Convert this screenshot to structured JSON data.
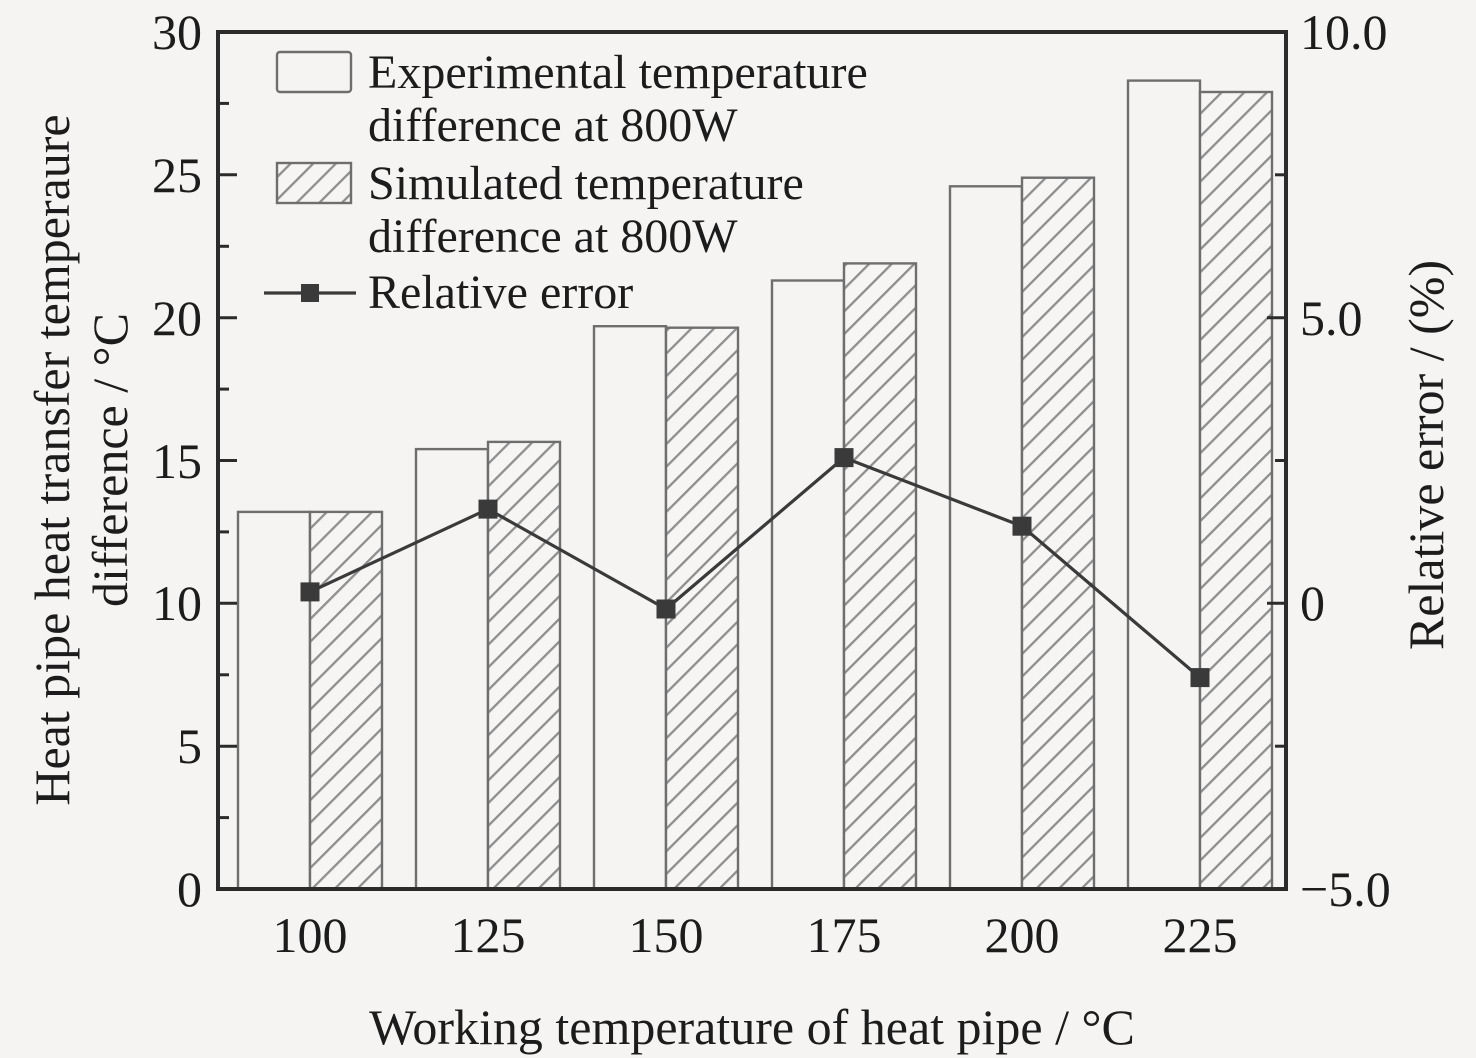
{
  "chart_data": {
    "type": "bar+line",
    "categories": [
      "100",
      "125",
      "150",
      "175",
      "200",
      "225"
    ],
    "x_axis": {
      "label": "Working temperature of heat pipe / °C",
      "tick_labels": [
        "100",
        "125",
        "150",
        "175",
        "200",
        "225"
      ]
    },
    "left_axis": {
      "label_lines": [
        "Heat pipe heat transfer temperaure",
        "difference / °C"
      ],
      "range": [
        0,
        30
      ],
      "major_tick_step": 5,
      "minor_tick_step": 2.5,
      "tick_labels": [
        "0",
        "5",
        "10",
        "15",
        "20",
        "25",
        "30"
      ]
    },
    "right_axis": {
      "label": "Relative error / (%)",
      "range": [
        -5,
        10
      ],
      "major_tick_step": 5,
      "minor_tick_step": 2.5,
      "tick_labels": [
        "−5.0",
        "0",
        "5.0",
        "10.0"
      ]
    },
    "bar_series": [
      {
        "name": "Experimental temperature difference at 800W",
        "style": "plain",
        "values": [
          13.2,
          15.4,
          19.7,
          21.3,
          24.6,
          28.3
        ]
      },
      {
        "name": "Simulated temperature difference at 800W",
        "style": "hatched",
        "values": [
          13.2,
          15.65,
          19.65,
          21.9,
          24.9,
          27.9
        ]
      }
    ],
    "line_series": {
      "name": "Relative error",
      "axis": "right",
      "values": [
        0.2,
        1.65,
        -0.1,
        2.55,
        1.35,
        -1.3
      ]
    },
    "legend": {
      "position": "top-left",
      "items": [
        {
          "swatch": "plain-bar",
          "lines": [
            "Experimental temperature",
            "difference at 800W"
          ]
        },
        {
          "swatch": "hatched-bar",
          "lines": [
            "Simulated temperature",
            "difference at 800W"
          ]
        },
        {
          "swatch": "line-marker",
          "lines": [
            "Relative error"
          ]
        }
      ]
    },
    "grid": false
  },
  "colors": {
    "background": "#f5f4f2",
    "frame": "#2b2b2b",
    "bar_outline": "#6e6e6e",
    "hatch": "#8e8e8e",
    "line_series": "#3a3a3a",
    "text": "#1c1c1c"
  }
}
